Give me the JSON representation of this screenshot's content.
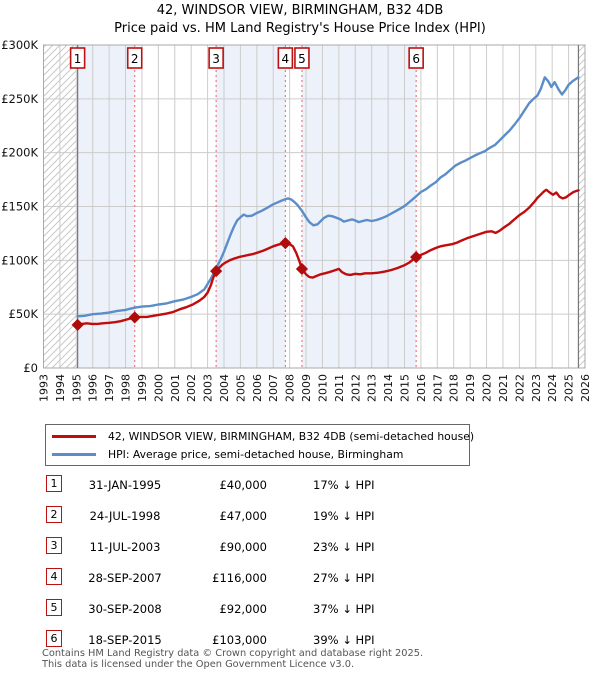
{
  "title": "42, WINDSOR VIEW, BIRMINGHAM, B32 4DB",
  "subtitle": "Price paid vs. HM Land Registry's House Price Index (HPI)",
  "chart_data": {
    "type": "line",
    "title": "42, WINDSOR VIEW, BIRMINGHAM, B32 4DB — Price paid vs. HPI",
    "xlabel": "",
    "ylabel": "",
    "x_range": [
      1993,
      2026
    ],
    "x_ticks": [
      1993,
      1994,
      1995,
      1996,
      1997,
      1998,
      1999,
      2000,
      2001,
      2002,
      2003,
      2004,
      2005,
      2006,
      2007,
      2008,
      2009,
      2010,
      2011,
      2012,
      2013,
      2014,
      2015,
      2016,
      2017,
      2018,
      2019,
      2020,
      2021,
      2022,
      2023,
      2024,
      2025,
      2026
    ],
    "ylim": [
      0,
      300000
    ],
    "y_ticks": [
      {
        "value": 0,
        "label": "£0"
      },
      {
        "value": 50000,
        "label": "£50K"
      },
      {
        "value": 100000,
        "label": "£100K"
      },
      {
        "value": 150000,
        "label": "£150K"
      },
      {
        "value": 200000,
        "label": "£200K"
      },
      {
        "value": 250000,
        "label": "£250K"
      },
      {
        "value": 300000,
        "label": "£300K"
      }
    ],
    "grid": true,
    "legend_position": "bottom",
    "data_start_year": 1995.08,
    "data_end_year": 2025.6,
    "shaded_ownership_bands": [
      [
        1995.08,
        1998.56
      ],
      [
        2003.52,
        2007.74
      ],
      [
        2008.75,
        2015.71
      ]
    ],
    "colors": {
      "property": "#c00c0c",
      "marker": "#b00b0b",
      "hpi": "#5b8dc8",
      "band": "#edf1fa",
      "grid": "#cccccc",
      "hatch": "#c9c9c9",
      "dashed": "#f26d6d",
      "border": "#a9a9a9",
      "boundary": "#777777",
      "box_border": "#bb1111"
    },
    "series": [
      {
        "name": "HPI: Average price, semi-detached house, Birmingham",
        "color_key": "hpi",
        "points": [
          [
            1995.08,
            48000
          ],
          [
            1995.5,
            48500
          ],
          [
            1996,
            50000
          ],
          [
            1996.5,
            50500
          ],
          [
            1997,
            51500
          ],
          [
            1997.5,
            53000
          ],
          [
            1998,
            54000
          ],
          [
            1998.56,
            56000
          ],
          [
            1999,
            57000
          ],
          [
            1999.5,
            57500
          ],
          [
            2000,
            59000
          ],
          [
            2000.5,
            60000
          ],
          [
            2001,
            62000
          ],
          [
            2001.5,
            63500
          ],
          [
            2002,
            66000
          ],
          [
            2002.4,
            68500
          ],
          [
            2002.8,
            73000
          ],
          [
            2003,
            78000
          ],
          [
            2003.2,
            83000
          ],
          [
            2003.4,
            89000
          ],
          [
            2003.6,
            95000
          ],
          [
            2003.8,
            101000
          ],
          [
            2004,
            108000
          ],
          [
            2004.2,
            116000
          ],
          [
            2004.4,
            124000
          ],
          [
            2004.6,
            131000
          ],
          [
            2004.8,
            137000
          ],
          [
            2005,
            140000
          ],
          [
            2005.2,
            142500
          ],
          [
            2005.4,
            141000
          ],
          [
            2005.7,
            141500
          ],
          [
            2006,
            144000
          ],
          [
            2006.3,
            146000
          ],
          [
            2006.6,
            148500
          ],
          [
            2007,
            152000
          ],
          [
            2007.3,
            154000
          ],
          [
            2007.6,
            156000
          ],
          [
            2007.9,
            157500
          ],
          [
            2008.1,
            156500
          ],
          [
            2008.3,
            154000
          ],
          [
            2008.5,
            151000
          ],
          [
            2008.75,
            146000
          ],
          [
            2009,
            140000
          ],
          [
            2009.2,
            135500
          ],
          [
            2009.45,
            132500
          ],
          [
            2009.7,
            133500
          ],
          [
            2009.9,
            136500
          ],
          [
            2010.1,
            139500
          ],
          [
            2010.35,
            141500
          ],
          [
            2010.6,
            141000
          ],
          [
            2010.85,
            139500
          ],
          [
            2011.1,
            138000
          ],
          [
            2011.3,
            136000
          ],
          [
            2011.55,
            137000
          ],
          [
            2011.8,
            138000
          ],
          [
            2012,
            137000
          ],
          [
            2012.2,
            135500
          ],
          [
            2012.45,
            136500
          ],
          [
            2012.7,
            137500
          ],
          [
            2013,
            136500
          ],
          [
            2013.3,
            137500
          ],
          [
            2013.6,
            139000
          ],
          [
            2013.9,
            141000
          ],
          [
            2014.2,
            143500
          ],
          [
            2014.5,
            146000
          ],
          [
            2014.8,
            148500
          ],
          [
            2015.1,
            151500
          ],
          [
            2015.4,
            155500
          ],
          [
            2015.71,
            159500
          ],
          [
            2016,
            163500
          ],
          [
            2016.3,
            166000
          ],
          [
            2016.6,
            169500
          ],
          [
            2016.9,
            172500
          ],
          [
            2017.2,
            177000
          ],
          [
            2017.5,
            180000
          ],
          [
            2017.8,
            184000
          ],
          [
            2018.1,
            188000
          ],
          [
            2018.4,
            190500
          ],
          [
            2018.7,
            192500
          ],
          [
            2019,
            195000
          ],
          [
            2019.3,
            197500
          ],
          [
            2019.6,
            199500
          ],
          [
            2019.9,
            201500
          ],
          [
            2020.2,
            204500
          ],
          [
            2020.5,
            207000
          ],
          [
            2020.8,
            211500
          ],
          [
            2021.1,
            216000
          ],
          [
            2021.4,
            220500
          ],
          [
            2021.7,
            226000
          ],
          [
            2022,
            232000
          ],
          [
            2022.3,
            239000
          ],
          [
            2022.6,
            246000
          ],
          [
            2022.9,
            250500
          ],
          [
            2023.1,
            253000
          ],
          [
            2023.3,
            259000
          ],
          [
            2023.55,
            270000
          ],
          [
            2023.75,
            266500
          ],
          [
            2023.95,
            261000
          ],
          [
            2024.15,
            265500
          ],
          [
            2024.4,
            258500
          ],
          [
            2024.6,
            254000
          ],
          [
            2024.8,
            258000
          ],
          [
            2025,
            263000
          ],
          [
            2025.25,
            266500
          ],
          [
            2025.45,
            268500
          ],
          [
            2025.6,
            270000
          ]
        ]
      },
      {
        "name": "42, WINDSOR VIEW, BIRMINGHAM, B32 4DB (semi-detached house)",
        "color_key": "property",
        "points": [
          [
            1995.08,
            40000
          ],
          [
            1995.35,
            41000
          ],
          [
            1995.65,
            41500
          ],
          [
            1995.95,
            41000
          ],
          [
            1996.3,
            41000
          ],
          [
            1996.6,
            41500
          ],
          [
            1997,
            42000
          ],
          [
            1997.35,
            42500
          ],
          [
            1997.7,
            43500
          ],
          [
            1998.05,
            45000
          ],
          [
            1998.3,
            46000
          ],
          [
            1998.56,
            47000
          ],
          [
            1998.9,
            47500
          ],
          [
            1999.3,
            47500
          ],
          [
            1999.7,
            48500
          ],
          [
            2000.1,
            49500
          ],
          [
            2000.5,
            50500
          ],
          [
            2000.9,
            52000
          ],
          [
            2001.3,
            54500
          ],
          [
            2001.7,
            56500
          ],
          [
            2002.1,
            59000
          ],
          [
            2002.5,
            62500
          ],
          [
            2002.8,
            66000
          ],
          [
            2003,
            70000
          ],
          [
            2003.2,
            77000
          ],
          [
            2003.35,
            84000
          ],
          [
            2003.52,
            90000
          ],
          [
            2003.7,
            93000
          ],
          [
            2003.9,
            96000
          ],
          [
            2004.1,
            98000
          ],
          [
            2004.35,
            100000
          ],
          [
            2004.6,
            101500
          ],
          [
            2004.9,
            103000
          ],
          [
            2005.2,
            104000
          ],
          [
            2005.5,
            105000
          ],
          [
            2005.8,
            106000
          ],
          [
            2006.1,
            107500
          ],
          [
            2006.4,
            109000
          ],
          [
            2006.7,
            111000
          ],
          [
            2007,
            113000
          ],
          [
            2007.3,
            114500
          ],
          [
            2007.74,
            116000
          ],
          [
            2008,
            115000
          ],
          [
            2008.2,
            113000
          ],
          [
            2008.4,
            107000
          ],
          [
            2008.6,
            99000
          ],
          [
            2008.75,
            92000
          ],
          [
            2009,
            87000
          ],
          [
            2009.2,
            84500
          ],
          [
            2009.4,
            84000
          ],
          [
            2009.65,
            85500
          ],
          [
            2009.9,
            87000
          ],
          [
            2010.15,
            88000
          ],
          [
            2010.4,
            89000
          ],
          [
            2010.7,
            90500
          ],
          [
            2011,
            92000
          ],
          [
            2011.2,
            89000
          ],
          [
            2011.45,
            87000
          ],
          [
            2011.7,
            86500
          ],
          [
            2012,
            87500
          ],
          [
            2012.3,
            87000
          ],
          [
            2012.6,
            88000
          ],
          [
            2013,
            88000
          ],
          [
            2013.4,
            88500
          ],
          [
            2013.8,
            89500
          ],
          [
            2014.2,
            91000
          ],
          [
            2014.6,
            93000
          ],
          [
            2015,
            95500
          ],
          [
            2015.3,
            98000
          ],
          [
            2015.71,
            103000
          ],
          [
            2016,
            105000
          ],
          [
            2016.3,
            107000
          ],
          [
            2016.6,
            109500
          ],
          [
            2016.9,
            111500
          ],
          [
            2017.2,
            113000
          ],
          [
            2017.5,
            114000
          ],
          [
            2017.9,
            115000
          ],
          [
            2018.2,
            116500
          ],
          [
            2018.5,
            118500
          ],
          [
            2018.8,
            120500
          ],
          [
            2019.1,
            122000
          ],
          [
            2019.4,
            123500
          ],
          [
            2019.7,
            125000
          ],
          [
            2020,
            126500
          ],
          [
            2020.3,
            127000
          ],
          [
            2020.55,
            125500
          ],
          [
            2020.8,
            127500
          ],
          [
            2021.1,
            131000
          ],
          [
            2021.4,
            134000
          ],
          [
            2021.7,
            138000
          ],
          [
            2022,
            142000
          ],
          [
            2022.3,
            145000
          ],
          [
            2022.6,
            149000
          ],
          [
            2022.9,
            154000
          ],
          [
            2023.1,
            158000
          ],
          [
            2023.3,
            161000
          ],
          [
            2023.5,
            164000
          ],
          [
            2023.65,
            165500
          ],
          [
            2023.85,
            163000
          ],
          [
            2024.05,
            161000
          ],
          [
            2024.25,
            163000
          ],
          [
            2024.45,
            159000
          ],
          [
            2024.65,
            157500
          ],
          [
            2024.85,
            158500
          ],
          [
            2025.05,
            161000
          ],
          [
            2025.3,
            163500
          ],
          [
            2025.6,
            165000
          ]
        ]
      }
    ],
    "sales": [
      {
        "n": "1",
        "year": 1995.08,
        "price": 40000
      },
      {
        "n": "2",
        "year": 1998.56,
        "price": 47000
      },
      {
        "n": "3",
        "year": 2003.52,
        "price": 90000
      },
      {
        "n": "4",
        "year": 2007.74,
        "price": 116000
      },
      {
        "n": "5",
        "year": 2008.75,
        "price": 92000
      },
      {
        "n": "6",
        "year": 2015.71,
        "price": 103000
      }
    ]
  },
  "legend": {
    "items": [
      {
        "label": "42, WINDSOR VIEW, BIRMINGHAM, B32 4DB (semi-detached house)",
        "color": "#c00c0c"
      },
      {
        "label": "HPI: Average price, semi-detached house, Birmingham",
        "color": "#5b8dc8"
      }
    ]
  },
  "table": {
    "rows": [
      {
        "num": "1",
        "date": "31-JAN-1995",
        "price": "£40,000",
        "hpi": "17% ↓ HPI"
      },
      {
        "num": "2",
        "date": "24-JUL-1998",
        "price": "£47,000",
        "hpi": "19% ↓ HPI"
      },
      {
        "num": "3",
        "date": "11-JUL-2003",
        "price": "£90,000",
        "hpi": "23% ↓ HPI"
      },
      {
        "num": "4",
        "date": "28-SEP-2007",
        "price": "£116,000",
        "hpi": "27% ↓ HPI"
      },
      {
        "num": "5",
        "date": "30-SEP-2008",
        "price": "£92,000",
        "hpi": "37% ↓ HPI"
      },
      {
        "num": "6",
        "date": "18-SEP-2015",
        "price": "£103,000",
        "hpi": "39% ↓ HPI"
      }
    ]
  },
  "footer": {
    "line1": "Contains HM Land Registry data © Crown copyright and database right 2025.",
    "line2": "This data is licensed under the Open Government Licence v3.0."
  }
}
